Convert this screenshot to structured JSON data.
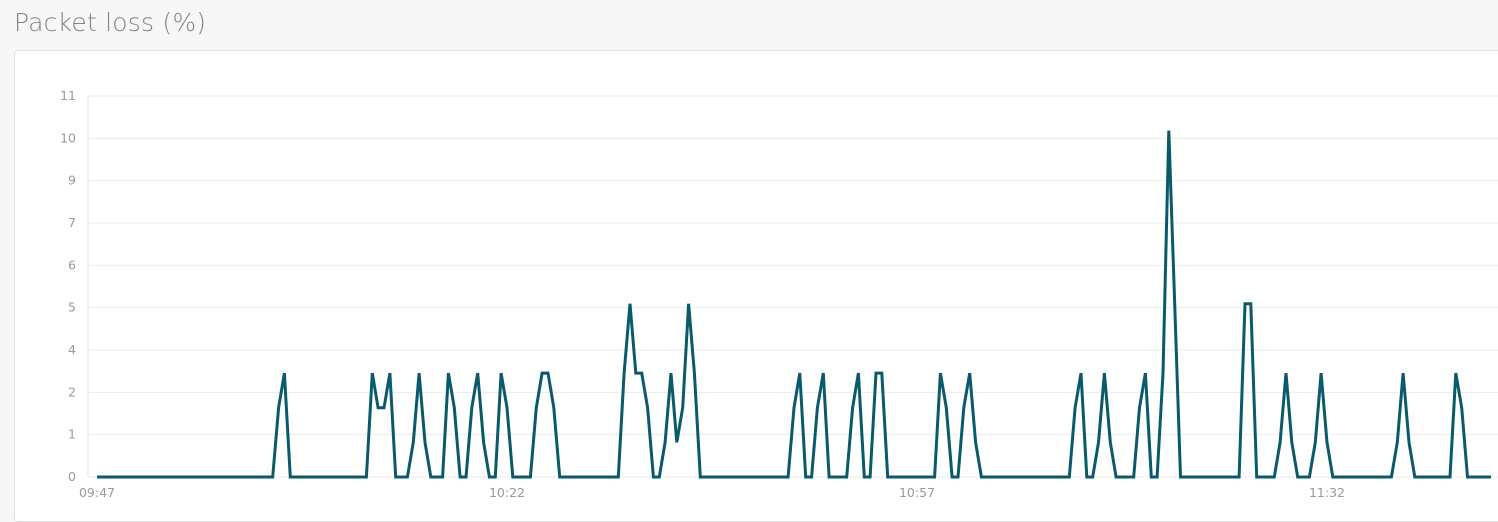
{
  "header": {
    "title": "Packet loss (%)"
  },
  "colors": {
    "line": "#0b5a6b",
    "grid": "#ebebeb",
    "tick_text": "#9a9a9a"
  },
  "chart_data": {
    "type": "line",
    "title": "",
    "xlabel": "",
    "ylabel": "",
    "ylim": [
      0,
      11
    ],
    "y_ticks": [
      "0",
      "1",
      "2",
      "4",
      "5",
      "6",
      "7",
      "9",
      "10",
      "11"
    ],
    "x_ticks": [
      {
        "label": "09:47",
        "x": "09:47:00"
      },
      {
        "label": "10:22",
        "x": "10:22:00"
      },
      {
        "label": "10:57",
        "x": "10:57:00"
      },
      {
        "label": "11:32",
        "x": "11:32:00"
      }
    ],
    "grid": "horizontal",
    "legend": "none",
    "x": [
      "09:47:00",
      "09:47:30",
      "09:48:00",
      "09:48:30",
      "09:49:00",
      "09:49:30",
      "09:50:00",
      "09:50:30",
      "09:51:00",
      "09:51:30",
      "09:52:00",
      "09:52:30",
      "09:53:00",
      "09:53:30",
      "09:54:00",
      "09:54:30",
      "09:55:00",
      "09:55:30",
      "09:56:00",
      "09:56:30",
      "09:57:00",
      "09:57:30",
      "09:58:00",
      "09:58:30",
      "09:59:00",
      "09:59:30",
      "10:00:00",
      "10:00:30",
      "10:01:00",
      "10:01:30",
      "10:02:00",
      "10:02:30",
      "10:03:00",
      "10:03:30",
      "10:04:00",
      "10:04:30",
      "10:05:00",
      "10:05:30",
      "10:06:00",
      "10:06:30",
      "10:07:00",
      "10:07:30",
      "10:08:00",
      "10:08:30",
      "10:09:00",
      "10:09:30",
      "10:10:00",
      "10:10:30",
      "10:11:00",
      "10:11:30",
      "10:12:00",
      "10:12:30",
      "10:13:00",
      "10:13:30",
      "10:14:00",
      "10:14:30",
      "10:15:00",
      "10:15:30",
      "10:16:00",
      "10:16:30",
      "10:17:00",
      "10:17:30",
      "10:18:00",
      "10:18:30",
      "10:19:00",
      "10:19:30",
      "10:20:00",
      "10:20:30",
      "10:21:00",
      "10:21:30",
      "10:22:00",
      "10:22:30",
      "10:23:00",
      "10:23:30",
      "10:24:00",
      "10:24:30",
      "10:25:00",
      "10:25:30",
      "10:26:00",
      "10:26:30",
      "10:27:00",
      "10:27:30",
      "10:28:00",
      "10:28:30",
      "10:29:00",
      "10:29:30",
      "10:30:00",
      "10:30:30",
      "10:31:00",
      "10:31:30",
      "10:32:00",
      "10:32:30",
      "10:33:00",
      "10:33:30",
      "10:34:00",
      "10:34:30",
      "10:35:00",
      "10:35:30",
      "10:36:00",
      "10:36:30",
      "10:37:00",
      "10:37:30",
      "10:38:00",
      "10:38:30",
      "10:39:00",
      "10:39:30",
      "10:40:00",
      "10:40:30",
      "10:41:00",
      "10:41:30",
      "10:42:00",
      "10:42:30",
      "10:43:00",
      "10:43:30",
      "10:44:00",
      "10:44:30",
      "10:45:00",
      "10:45:30",
      "10:46:00",
      "10:46:30",
      "10:47:00",
      "10:47:30",
      "10:48:00",
      "10:48:30",
      "10:49:00",
      "10:49:30",
      "10:50:00",
      "10:50:30",
      "10:51:00",
      "10:51:30",
      "10:52:00",
      "10:52:30",
      "10:53:00",
      "10:53:30",
      "10:54:00",
      "10:54:30",
      "10:55:00",
      "10:55:30",
      "10:56:00",
      "10:56:30",
      "10:57:00",
      "10:57:30",
      "10:58:00",
      "10:58:30",
      "10:59:00",
      "10:59:30",
      "11:00:00",
      "11:00:30",
      "11:01:00",
      "11:01:30",
      "11:02:00",
      "11:02:30",
      "11:03:00",
      "11:03:30",
      "11:04:00",
      "11:04:30",
      "11:05:00",
      "11:05:30",
      "11:06:00",
      "11:06:30",
      "11:07:00",
      "11:07:30",
      "11:08:00",
      "11:08:30",
      "11:09:00",
      "11:09:30",
      "11:10:00",
      "11:10:30",
      "11:11:00",
      "11:11:30",
      "11:12:00",
      "11:12:30",
      "11:13:00",
      "11:13:30",
      "11:14:00",
      "11:14:30",
      "11:15:00",
      "11:15:30",
      "11:16:00",
      "11:16:30",
      "11:17:00",
      "11:17:30",
      "11:18:00",
      "11:18:30",
      "11:19:00",
      "11:19:30",
      "11:20:00",
      "11:20:30",
      "11:21:00",
      "11:21:30",
      "11:22:00",
      "11:22:30",
      "11:23:00",
      "11:23:30",
      "11:24:00",
      "11:24:30",
      "11:25:00",
      "11:25:30",
      "11:26:00",
      "11:26:30",
      "11:27:00",
      "11:27:30",
      "11:28:00",
      "11:28:30",
      "11:29:00",
      "11:29:30",
      "11:30:00",
      "11:30:30",
      "11:31:00",
      "11:31:30",
      "11:32:00",
      "11:32:30",
      "11:33:00",
      "11:33:30",
      "11:34:00",
      "11:34:30",
      "11:35:00",
      "11:35:30",
      "11:36:00",
      "11:36:30",
      "11:37:00",
      "11:37:30",
      "11:38:00",
      "11:38:30",
      "11:39:00",
      "11:39:30",
      "11:40:00",
      "11:40:30",
      "11:41:00",
      "11:41:30",
      "11:42:00",
      "11:42:30",
      "11:43:00",
      "11:43:30",
      "11:44:00",
      "11:44:30",
      "11:45:00",
      "11:45:30",
      "11:46:00"
    ],
    "series": [
      {
        "values": [
          0,
          0,
          0,
          0,
          0,
          0,
          0,
          0,
          0,
          0,
          0,
          0,
          0,
          0,
          0,
          0,
          0,
          0,
          0,
          0,
          0,
          0,
          0,
          0,
          0,
          0,
          0,
          0,
          0,
          0,
          0,
          2,
          3,
          0,
          0,
          0,
          0,
          0,
          0,
          0,
          0,
          0,
          0,
          0,
          0,
          0,
          0,
          3,
          2,
          2,
          3,
          0,
          0,
          0,
          1,
          3,
          1,
          0,
          0,
          0,
          3,
          2,
          0,
          0,
          2,
          3,
          1,
          0,
          0,
          3,
          2,
          0,
          0,
          0,
          0,
          2,
          3,
          3,
          2,
          0,
          0,
          0,
          0,
          0,
          0,
          0,
          0,
          0,
          0,
          0,
          3,
          5,
          3,
          3,
          2,
          0,
          0,
          1,
          3,
          1,
          2,
          5,
          3,
          0,
          0,
          0,
          0,
          0,
          0,
          0,
          0,
          0,
          0,
          0,
          0,
          0,
          0,
          0,
          0,
          2,
          3,
          0,
          0,
          2,
          3,
          0,
          0,
          0,
          0,
          2,
          3,
          0,
          0,
          3,
          3,
          0,
          0,
          0,
          0,
          0,
          0,
          0,
          0,
          0,
          3,
          2,
          0,
          0,
          2,
          3,
          1,
          0,
          0,
          0,
          0,
          0,
          0,
          0,
          0,
          0,
          0,
          0,
          0,
          0,
          0,
          0,
          0,
          2,
          3,
          0,
          0,
          1,
          3,
          1,
          0,
          0,
          0,
          0,
          2,
          3,
          0,
          0,
          3,
          10,
          5,
          0,
          0,
          0,
          0,
          0,
          0,
          0,
          0,
          0,
          0,
          0,
          5,
          5,
          0,
          0,
          0,
          0,
          1,
          3,
          1,
          0,
          0,
          0,
          1,
          3,
          1,
          0,
          0,
          0,
          0,
          0,
          0,
          0,
          0,
          0,
          0,
          0,
          1,
          3,
          1,
          0,
          0,
          0,
          0,
          0,
          0,
          0,
          3,
          2,
          0,
          0,
          0,
          0,
          0
        ]
      }
    ]
  }
}
